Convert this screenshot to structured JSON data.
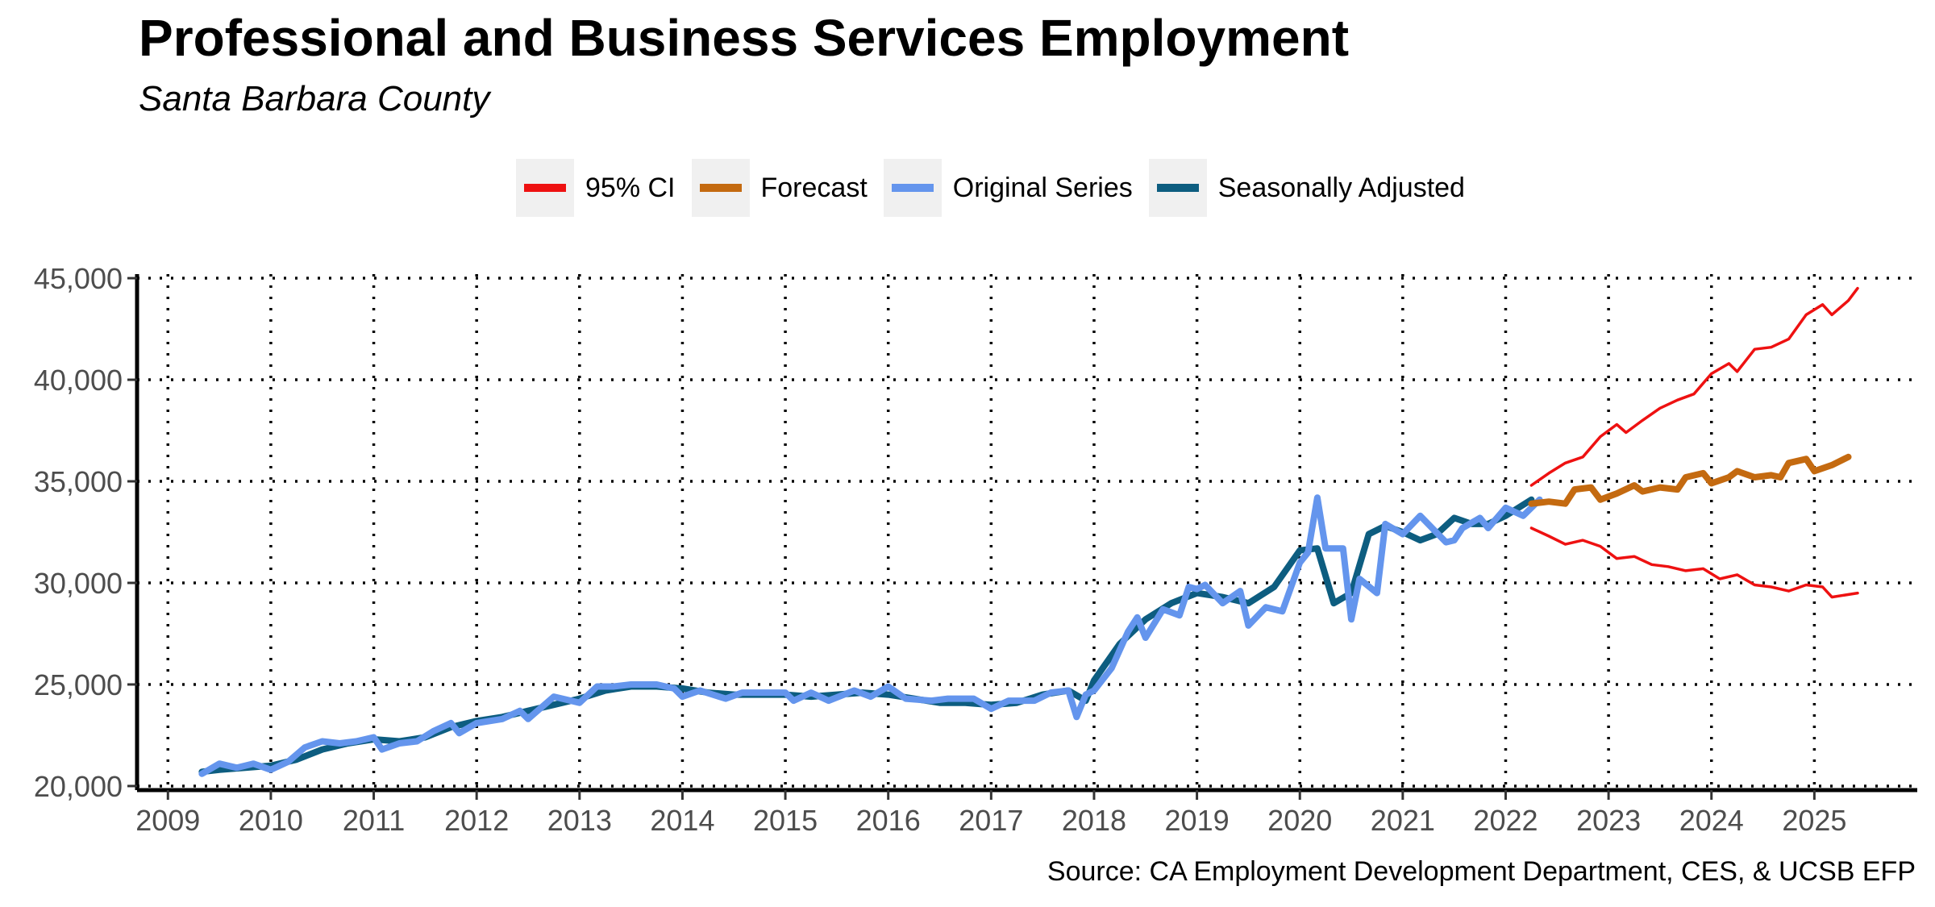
{
  "chart_data": {
    "type": "line",
    "title": "Professional and Business Services Employment",
    "subtitle": "Santa Barbara County",
    "source": "Source: CA Employment Development Department, CES, & UCSB EFP",
    "xlabel": "",
    "ylabel": "",
    "xlim": [
      2008.7,
      2026.0
    ],
    "ylim": [
      19800,
      45200
    ],
    "x_ticks": [
      "2009",
      "2010",
      "2011",
      "2012",
      "2013",
      "2014",
      "2015",
      "2016",
      "2017",
      "2018",
      "2019",
      "2020",
      "2021",
      "2022",
      "2023",
      "2024",
      "2025"
    ],
    "y_ticks": [
      "20,000",
      "25,000",
      "30,000",
      "35,000",
      "40,000",
      "45,000"
    ],
    "grid": true,
    "legend_position": "top",
    "colors": {
      "ci": "#ee1111",
      "forecast": "#c46a10",
      "original": "#6495ed",
      "seasonal": "#0d5d80"
    },
    "legend": [
      {
        "key": "ci",
        "label": "95% CI"
      },
      {
        "key": "forecast",
        "label": "Forecast"
      },
      {
        "key": "original",
        "label": "Original Series"
      },
      {
        "key": "seasonal",
        "label": "Seasonally Adjusted"
      }
    ],
    "series": [
      {
        "name": "Seasonally Adjusted",
        "key": "seasonal",
        "points": [
          [
            2009.33,
            20700
          ],
          [
            2009.5,
            20800
          ],
          [
            2009.75,
            20900
          ],
          [
            2010.0,
            21000
          ],
          [
            2010.25,
            21300
          ],
          [
            2010.5,
            21800
          ],
          [
            2010.75,
            22100
          ],
          [
            2011.0,
            22300
          ],
          [
            2011.25,
            22200
          ],
          [
            2011.5,
            22400
          ],
          [
            2011.75,
            22900
          ],
          [
            2012.0,
            23200
          ],
          [
            2012.25,
            23400
          ],
          [
            2012.5,
            23700
          ],
          [
            2012.75,
            24000
          ],
          [
            2013.0,
            24300
          ],
          [
            2013.25,
            24700
          ],
          [
            2013.5,
            24900
          ],
          [
            2013.75,
            24900
          ],
          [
            2014.0,
            24800
          ],
          [
            2014.25,
            24600
          ],
          [
            2014.5,
            24500
          ],
          [
            2014.75,
            24500
          ],
          [
            2015.0,
            24500
          ],
          [
            2015.25,
            24400
          ],
          [
            2015.5,
            24500
          ],
          [
            2015.75,
            24600
          ],
          [
            2016.0,
            24500
          ],
          [
            2016.25,
            24300
          ],
          [
            2016.5,
            24100
          ],
          [
            2016.75,
            24100
          ],
          [
            2017.0,
            24000
          ],
          [
            2017.25,
            24100
          ],
          [
            2017.5,
            24500
          ],
          [
            2017.75,
            24700
          ],
          [
            2017.92,
            24200
          ],
          [
            2018.0,
            25200
          ],
          [
            2018.25,
            27000
          ],
          [
            2018.5,
            28200
          ],
          [
            2018.75,
            29000
          ],
          [
            2019.0,
            29500
          ],
          [
            2019.25,
            29300
          ],
          [
            2019.5,
            29000
          ],
          [
            2019.75,
            29800
          ],
          [
            2020.0,
            31600
          ],
          [
            2020.17,
            31700
          ],
          [
            2020.33,
            29000
          ],
          [
            2020.5,
            29500
          ],
          [
            2020.67,
            32400
          ],
          [
            2020.83,
            32800
          ],
          [
            2021.0,
            32500
          ],
          [
            2021.17,
            32100
          ],
          [
            2021.33,
            32400
          ],
          [
            2021.5,
            33200
          ],
          [
            2021.67,
            32900
          ],
          [
            2021.83,
            32900
          ],
          [
            2022.0,
            33300
          ],
          [
            2022.25,
            34100
          ]
        ]
      },
      {
        "name": "Original Series",
        "key": "original",
        "points": [
          [
            2009.33,
            20600
          ],
          [
            2009.5,
            21100
          ],
          [
            2009.67,
            20900
          ],
          [
            2009.83,
            21100
          ],
          [
            2010.0,
            20800
          ],
          [
            2010.17,
            21200
          ],
          [
            2010.33,
            21900
          ],
          [
            2010.5,
            22200
          ],
          [
            2010.67,
            22100
          ],
          [
            2010.83,
            22200
          ],
          [
            2011.0,
            22400
          ],
          [
            2011.08,
            21800
          ],
          [
            2011.25,
            22100
          ],
          [
            2011.42,
            22200
          ],
          [
            2011.58,
            22700
          ],
          [
            2011.75,
            23100
          ],
          [
            2011.83,
            22600
          ],
          [
            2012.0,
            23100
          ],
          [
            2012.25,
            23300
          ],
          [
            2012.42,
            23700
          ],
          [
            2012.5,
            23300
          ],
          [
            2012.75,
            24400
          ],
          [
            2013.0,
            24100
          ],
          [
            2013.17,
            24900
          ],
          [
            2013.33,
            24900
          ],
          [
            2013.5,
            25000
          ],
          [
            2013.75,
            25000
          ],
          [
            2013.92,
            24800
          ],
          [
            2014.0,
            24400
          ],
          [
            2014.17,
            24700
          ],
          [
            2014.42,
            24300
          ],
          [
            2014.58,
            24600
          ],
          [
            2014.83,
            24600
          ],
          [
            2015.0,
            24600
          ],
          [
            2015.08,
            24200
          ],
          [
            2015.25,
            24600
          ],
          [
            2015.42,
            24200
          ],
          [
            2015.67,
            24700
          ],
          [
            2015.83,
            24400
          ],
          [
            2016.0,
            24900
          ],
          [
            2016.17,
            24300
          ],
          [
            2016.42,
            24200
          ],
          [
            2016.58,
            24300
          ],
          [
            2016.83,
            24300
          ],
          [
            2017.0,
            23800
          ],
          [
            2017.17,
            24200
          ],
          [
            2017.42,
            24200
          ],
          [
            2017.58,
            24600
          ],
          [
            2017.75,
            24700
          ],
          [
            2017.83,
            23400
          ],
          [
            2017.92,
            24500
          ],
          [
            2018.0,
            24700
          ],
          [
            2018.17,
            25800
          ],
          [
            2018.33,
            27600
          ],
          [
            2018.42,
            28300
          ],
          [
            2018.5,
            27300
          ],
          [
            2018.67,
            28700
          ],
          [
            2018.83,
            28400
          ],
          [
            2018.92,
            29800
          ],
          [
            2019.0,
            29700
          ],
          [
            2019.08,
            29900
          ],
          [
            2019.25,
            29000
          ],
          [
            2019.42,
            29600
          ],
          [
            2019.5,
            27900
          ],
          [
            2019.67,
            28800
          ],
          [
            2019.83,
            28600
          ],
          [
            2020.0,
            31000
          ],
          [
            2020.08,
            31500
          ],
          [
            2020.17,
            34200
          ],
          [
            2020.25,
            31700
          ],
          [
            2020.42,
            31700
          ],
          [
            2020.5,
            28200
          ],
          [
            2020.58,
            30200
          ],
          [
            2020.75,
            29500
          ],
          [
            2020.83,
            32900
          ],
          [
            2021.0,
            32400
          ],
          [
            2021.17,
            33300
          ],
          [
            2021.42,
            32000
          ],
          [
            2021.5,
            32100
          ],
          [
            2021.58,
            32700
          ],
          [
            2021.75,
            33200
          ],
          [
            2021.83,
            32700
          ],
          [
            2022.0,
            33700
          ],
          [
            2022.17,
            33300
          ],
          [
            2022.25,
            33700
          ],
          [
            2022.33,
            34100
          ]
        ]
      },
      {
        "name": "95% CI",
        "key": "ci",
        "points": [
          [
            2022.25,
            34800
          ],
          [
            2022.42,
            35400
          ],
          [
            2022.58,
            35900
          ],
          [
            2022.75,
            36200
          ],
          [
            2022.92,
            37200
          ],
          [
            2023.08,
            37800
          ],
          [
            2023.17,
            37400
          ],
          [
            2023.33,
            38000
          ],
          [
            2023.5,
            38600
          ],
          [
            2023.67,
            39000
          ],
          [
            2023.83,
            39300
          ],
          [
            2024.0,
            40300
          ],
          [
            2024.17,
            40800
          ],
          [
            2024.25,
            40400
          ],
          [
            2024.42,
            41500
          ],
          [
            2024.58,
            41600
          ],
          [
            2024.75,
            42000
          ],
          [
            2024.92,
            43200
          ],
          [
            2025.08,
            43700
          ],
          [
            2025.17,
            43200
          ],
          [
            2025.33,
            43900
          ],
          [
            2025.42,
            44500
          ]
        ]
      },
      {
        "name": "95% CI",
        "key": "ci",
        "points": [
          [
            2022.25,
            32700
          ],
          [
            2022.42,
            32300
          ],
          [
            2022.58,
            31900
          ],
          [
            2022.75,
            32100
          ],
          [
            2022.92,
            31800
          ],
          [
            2023.08,
            31200
          ],
          [
            2023.25,
            31300
          ],
          [
            2023.42,
            30900
          ],
          [
            2023.58,
            30800
          ],
          [
            2023.75,
            30600
          ],
          [
            2023.92,
            30700
          ],
          [
            2024.08,
            30200
          ],
          [
            2024.25,
            30400
          ],
          [
            2024.42,
            29900
          ],
          [
            2024.58,
            29800
          ],
          [
            2024.75,
            29600
          ],
          [
            2024.92,
            29900
          ],
          [
            2025.08,
            29800
          ],
          [
            2025.17,
            29300
          ],
          [
            2025.42,
            29500
          ]
        ]
      },
      {
        "name": "Forecast",
        "key": "forecast",
        "points": [
          [
            2022.25,
            33900
          ],
          [
            2022.42,
            34000
          ],
          [
            2022.58,
            33900
          ],
          [
            2022.67,
            34600
          ],
          [
            2022.83,
            34700
          ],
          [
            2022.92,
            34100
          ],
          [
            2023.08,
            34400
          ],
          [
            2023.25,
            34800
          ],
          [
            2023.33,
            34500
          ],
          [
            2023.5,
            34700
          ],
          [
            2023.67,
            34600
          ],
          [
            2023.75,
            35200
          ],
          [
            2023.92,
            35400
          ],
          [
            2024.0,
            34900
          ],
          [
            2024.17,
            35200
          ],
          [
            2024.25,
            35500
          ],
          [
            2024.42,
            35200
          ],
          [
            2024.58,
            35300
          ],
          [
            2024.67,
            35200
          ],
          [
            2024.75,
            35900
          ],
          [
            2024.92,
            36100
          ],
          [
            2025.0,
            35500
          ],
          [
            2025.17,
            35800
          ],
          [
            2025.33,
            36200
          ]
        ]
      }
    ]
  }
}
